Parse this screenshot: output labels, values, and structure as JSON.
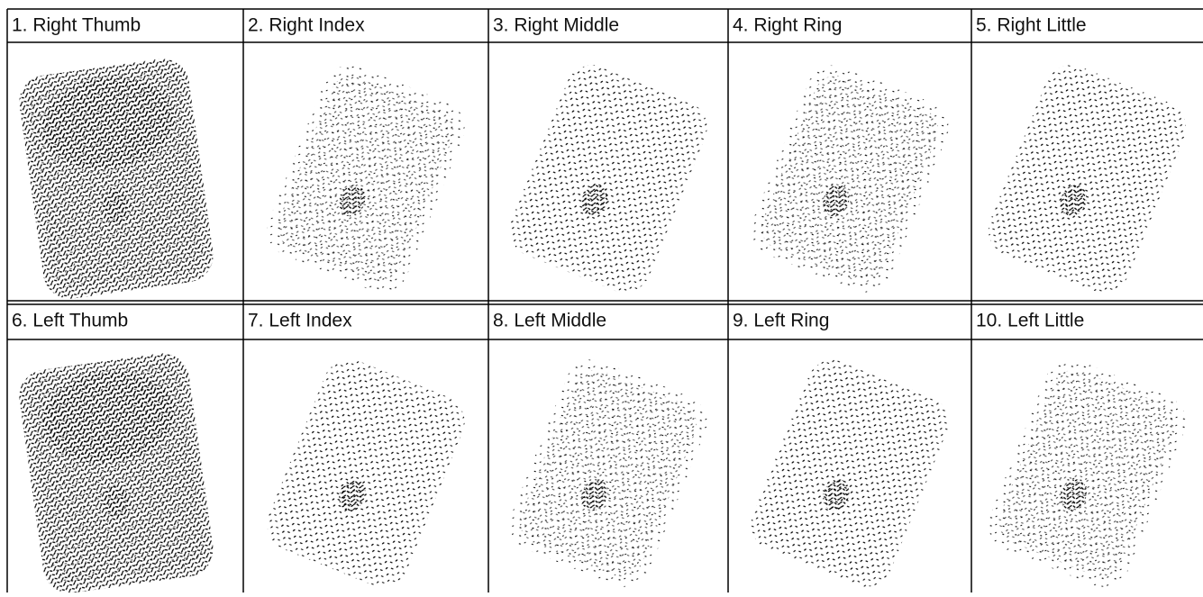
{
  "fingers": [
    "1. Right Thumb",
    "2. Right Index",
    "3. Right Middle",
    "4. Right Ring",
    "5. Right Little",
    "6. Left Thumb",
    "7. Left Index",
    "8. Left Middle",
    "9. Left Ring",
    "10. Left Little"
  ]
}
